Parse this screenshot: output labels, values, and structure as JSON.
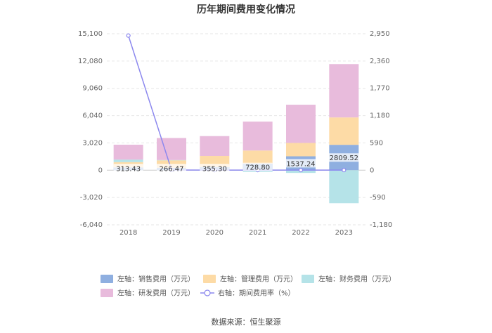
{
  "chart_data": {
    "type": "bar",
    "title": "历年期间费用变化情况",
    "categories": [
      "2018",
      "2019",
      "2020",
      "2021",
      "2022",
      "2023"
    ],
    "series": [
      {
        "name": "左轴：销售费用（万元）",
        "axis": "left",
        "color": "#8fafe0",
        "values": [
          313.43,
          266.47,
          355.3,
          728.8,
          1537.24,
          2809.52
        ]
      },
      {
        "name": "左轴：管理费用（万元）",
        "axis": "left",
        "color": "#fddba6",
        "values": [
          580,
          830,
          1220,
          1450,
          1480,
          3030
        ]
      },
      {
        "name": "左轴：财务费用（万元）",
        "axis": "left",
        "color": "#b5e3e8",
        "values": [
          280,
          30,
          -30,
          -200,
          -300,
          -3650
        ]
      },
      {
        "name": "左轴：研发费用（万元）",
        "axis": "left",
        "color": "#e8bbdc",
        "values": [
          1650,
          2440,
          2200,
          3200,
          4230,
          5900
        ]
      },
      {
        "name": "右轴：期间费用率（%）",
        "axis": "right",
        "type": "line",
        "color": "#8c88ee",
        "values": [
          2910,
          5,
          3,
          3,
          3,
          3
        ]
      }
    ],
    "bar_labels": [
      "313.43",
      "266.47",
      "355.30",
      "728.80",
      "1537.24",
      "2809.52"
    ],
    "left_axis": {
      "ticks": [
        15100,
        12080,
        9060,
        6040,
        3020,
        0,
        -3020,
        -6040
      ],
      "tick_labels": [
        "15,100",
        "12,080",
        "9,060",
        "6,040",
        "3,020",
        "0",
        "-3,020",
        "-6,040"
      ],
      "ylim": [
        -6040,
        15100
      ]
    },
    "right_axis": {
      "ticks": [
        2950,
        2360,
        1770,
        1180,
        590,
        0,
        -590,
        -1180
      ],
      "tick_labels": [
        "2,950",
        "2,360",
        "1,770",
        "1,180",
        "590",
        "0",
        "-590",
        "-1,180"
      ],
      "ylim": [
        -1180,
        2950
      ]
    },
    "grid": true,
    "legend_position": "bottom"
  },
  "legend": [
    {
      "label": "左轴：销售费用（万元）",
      "color": "#8fafe0",
      "kind": "box"
    },
    {
      "label": "左轴：管理费用（万元）",
      "color": "#fddba6",
      "kind": "box"
    },
    {
      "label": "左轴：财务费用（万元）",
      "color": "#b5e3e8",
      "kind": "box"
    },
    {
      "label": "左轴：研发费用（万元）",
      "color": "#e8bbdc",
      "kind": "box"
    },
    {
      "label": "右轴：期间费用率（%）",
      "color": "#8c88ee",
      "kind": "line"
    }
  ],
  "source": "数据来源：恒生聚源"
}
